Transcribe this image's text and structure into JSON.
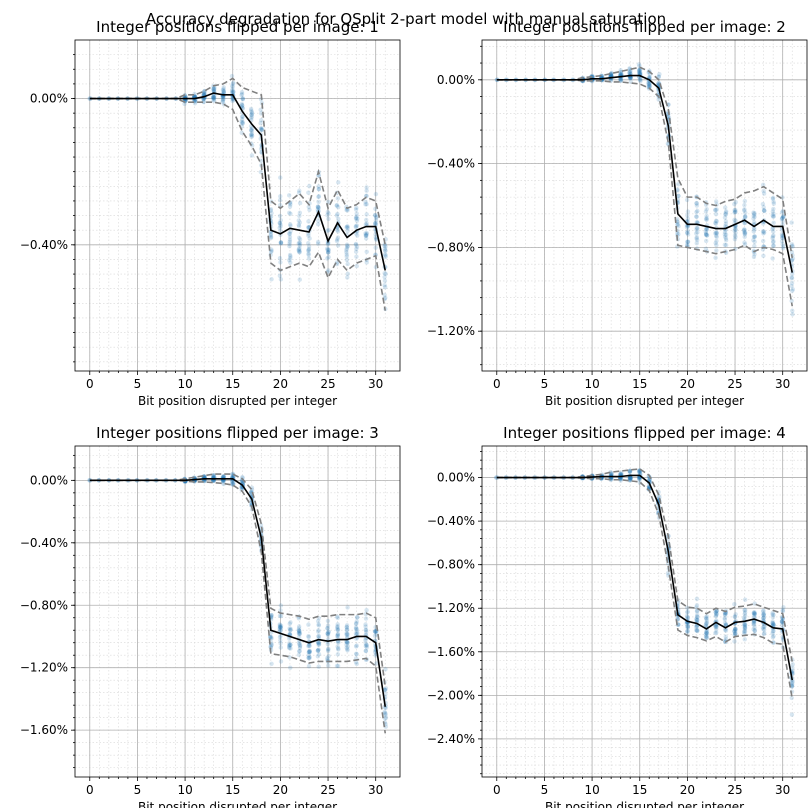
{
  "figure_title": "Accuracy degradation for QSplit 2-part model with manual saturation",
  "colors": {
    "points": "#1f77b4",
    "mean": "#000000",
    "band": "#808080",
    "grid": "#b0b0b0"
  },
  "chart_data": [
    {
      "type": "scatter",
      "title": "Integer positions flipped per image: 1",
      "xlabel": "Bit position disrupted per integer",
      "ylabel": "",
      "x": [
        0,
        1,
        2,
        3,
        4,
        5,
        6,
        7,
        8,
        9,
        10,
        11,
        12,
        13,
        14,
        15,
        16,
        17,
        18,
        19,
        20,
        21,
        22,
        23,
        24,
        25,
        26,
        27,
        28,
        29,
        30,
        31
      ],
      "series": [
        {
          "role": "mean",
          "values": [
            0,
            0,
            0,
            0,
            0,
            0,
            0,
            0,
            0,
            0,
            0,
            0,
            0.005,
            0.015,
            0.01,
            0.01,
            -0.035,
            -0.07,
            -0.1,
            -0.36,
            -0.37,
            -0.355,
            -0.36,
            -0.365,
            -0.31,
            -0.39,
            -0.34,
            -0.38,
            -0.36,
            -0.35,
            -0.35,
            -0.47
          ]
        },
        {
          "role": "upper",
          "values": [
            0,
            0,
            0,
            0,
            0,
            0,
            0,
            0,
            0,
            0,
            0.01,
            0.01,
            0.02,
            0.035,
            0.04,
            0.055,
            0.03,
            0.02,
            0.01,
            -0.28,
            -0.3,
            -0.28,
            -0.26,
            -0.29,
            -0.2,
            -0.3,
            -0.25,
            -0.3,
            -0.29,
            -0.27,
            -0.28,
            -0.4
          ]
        },
        {
          "role": "lower",
          "values": [
            0,
            0,
            0,
            0,
            0,
            0,
            0,
            0,
            0,
            0,
            -0.01,
            -0.01,
            -0.01,
            -0.01,
            -0.015,
            -0.03,
            -0.09,
            -0.13,
            -0.18,
            -0.45,
            -0.47,
            -0.46,
            -0.45,
            -0.46,
            -0.42,
            -0.49,
            -0.44,
            -0.47,
            -0.45,
            -0.44,
            -0.43,
            -0.58
          ]
        }
      ],
      "spread": [
        0,
        0,
        0,
        0,
        0,
        0,
        0,
        0,
        0,
        0,
        0.012,
        0.012,
        0.015,
        0.02,
        0.025,
        0.035,
        0.05,
        0.06,
        0.08,
        0.11,
        0.11,
        0.1,
        0.1,
        0.1,
        0.11,
        0.1,
        0.1,
        0.1,
        0.1,
        0.1,
        0.1,
        0.13
      ],
      "xlim": [
        -1.55,
        32.55
      ],
      "ylim": [
        -0.745,
        0.16
      ],
      "xticks": [
        0,
        5,
        10,
        15,
        20,
        25,
        30
      ],
      "yticks": [
        0,
        -0.4
      ],
      "ytick_labels": [
        "0.00%",
        "−0.40%"
      ],
      "minor_y_step": 0.04,
      "grid": true
    },
    {
      "type": "scatter",
      "title": "Integer positions flipped per image: 2",
      "xlabel": "Bit position disrupted per integer",
      "ylabel": "",
      "x": [
        0,
        1,
        2,
        3,
        4,
        5,
        6,
        7,
        8,
        9,
        10,
        11,
        12,
        13,
        14,
        15,
        16,
        17,
        18,
        19,
        20,
        21,
        22,
        23,
        24,
        25,
        26,
        27,
        28,
        29,
        30,
        31
      ],
      "series": [
        {
          "role": "mean",
          "values": [
            0,
            0,
            0,
            0,
            0,
            0,
            0,
            0,
            0,
            0,
            0.005,
            0.005,
            0.01,
            0.015,
            0.02,
            0.02,
            0.0,
            -0.04,
            -0.22,
            -0.64,
            -0.69,
            -0.69,
            -0.7,
            -0.71,
            -0.71,
            -0.69,
            -0.67,
            -0.7,
            -0.67,
            -0.7,
            -0.7,
            -0.92
          ]
        },
        {
          "role": "upper",
          "values": [
            0,
            0,
            0,
            0,
            0,
            0,
            0,
            0,
            0,
            0.01,
            0.015,
            0.02,
            0.03,
            0.04,
            0.05,
            0.06,
            0.04,
            0.0,
            -0.14,
            -0.47,
            -0.56,
            -0.56,
            -0.59,
            -0.6,
            -0.58,
            -0.57,
            -0.54,
            -0.53,
            -0.51,
            -0.54,
            -0.57,
            -0.85
          ]
        },
        {
          "role": "lower",
          "values": [
            0,
            0,
            0,
            0,
            0,
            0,
            0,
            0,
            0,
            -0.005,
            -0.005,
            -0.005,
            -0.01,
            -0.01,
            -0.015,
            -0.02,
            -0.04,
            -0.08,
            -0.3,
            -0.79,
            -0.8,
            -0.81,
            -0.82,
            -0.83,
            -0.82,
            -0.81,
            -0.79,
            -0.82,
            -0.8,
            -0.81,
            -0.83,
            -1.08
          ]
        }
      ],
      "spread": [
        0,
        0,
        0,
        0,
        0,
        0,
        0,
        0,
        0,
        0.01,
        0.012,
        0.015,
        0.02,
        0.025,
        0.03,
        0.04,
        0.05,
        0.06,
        0.1,
        0.15,
        0.12,
        0.12,
        0.12,
        0.12,
        0.12,
        0.12,
        0.12,
        0.13,
        0.13,
        0.13,
        0.13,
        0.18
      ],
      "xlim": [
        -1.55,
        32.55
      ],
      "ylim": [
        -1.39,
        0.19
      ],
      "xticks": [
        0,
        5,
        10,
        15,
        20,
        25,
        30
      ],
      "yticks": [
        0,
        -0.4,
        -0.8,
        -1.2
      ],
      "ytick_labels": [
        "0.00%",
        "−0.40%",
        "−0.80%",
        "−1.20%"
      ],
      "minor_y_step": 0.08,
      "grid": true
    },
    {
      "type": "scatter",
      "title": "Integer positions flipped per image: 3",
      "xlabel": "Bit position disrupted per integer",
      "ylabel": "",
      "x": [
        0,
        1,
        2,
        3,
        4,
        5,
        6,
        7,
        8,
        9,
        10,
        11,
        12,
        13,
        14,
        15,
        16,
        17,
        18,
        19,
        20,
        21,
        22,
        23,
        24,
        25,
        26,
        27,
        28,
        29,
        30,
        31
      ],
      "series": [
        {
          "role": "mean",
          "values": [
            0,
            0,
            0,
            0,
            0,
            0,
            0,
            0,
            0,
            0,
            0,
            0.005,
            0.01,
            0.01,
            0.01,
            0.01,
            -0.03,
            -0.12,
            -0.37,
            -0.96,
            -0.98,
            -1.0,
            -1.02,
            -1.04,
            -1.02,
            -1.03,
            -1.02,
            -1.02,
            -1.0,
            -1.0,
            -1.04,
            -1.45
          ]
        },
        {
          "role": "upper",
          "values": [
            0,
            0,
            0,
            0,
            0,
            0,
            0,
            0,
            0,
            0,
            0.01,
            0.02,
            0.03,
            0.04,
            0.04,
            0.04,
            0.01,
            -0.06,
            -0.28,
            -0.82,
            -0.85,
            -0.86,
            -0.87,
            -0.89,
            -0.87,
            -0.87,
            -0.86,
            -0.86,
            -0.86,
            -0.85,
            -0.88,
            -1.32
          ]
        },
        {
          "role": "lower",
          "values": [
            0,
            0,
            0,
            0,
            0,
            0,
            0,
            0,
            0,
            0,
            -0.005,
            -0.01,
            -0.01,
            -0.015,
            -0.02,
            -0.03,
            -0.07,
            -0.17,
            -0.46,
            -1.11,
            -1.12,
            -1.13,
            -1.15,
            -1.17,
            -1.16,
            -1.16,
            -1.16,
            -1.16,
            -1.15,
            -1.14,
            -1.19,
            -1.62
          ]
        }
      ],
      "spread": [
        0,
        0,
        0,
        0,
        0,
        0,
        0,
        0,
        0,
        0,
        0.01,
        0.015,
        0.02,
        0.025,
        0.03,
        0.04,
        0.05,
        0.07,
        0.1,
        0.16,
        0.14,
        0.14,
        0.14,
        0.14,
        0.14,
        0.14,
        0.14,
        0.14,
        0.14,
        0.14,
        0.15,
        0.22
      ],
      "xlim": [
        -1.55,
        32.55
      ],
      "ylim": [
        -1.9,
        0.22
      ],
      "xticks": [
        0,
        5,
        10,
        15,
        20,
        25,
        30
      ],
      "yticks": [
        0,
        -0.4,
        -0.8,
        -1.2,
        -1.6
      ],
      "ytick_labels": [
        "0.00%",
        "−0.40%",
        "−0.80%",
        "−1.20%",
        "−1.60%"
      ],
      "minor_y_step": 0.08,
      "grid": true
    },
    {
      "type": "scatter",
      "title": "Integer positions flipped per image: 4",
      "xlabel": "Bit position disrupted per integer",
      "ylabel": "",
      "x": [
        0,
        1,
        2,
        3,
        4,
        5,
        6,
        7,
        8,
        9,
        10,
        11,
        12,
        13,
        14,
        15,
        16,
        17,
        18,
        19,
        20,
        21,
        22,
        23,
        24,
        25,
        26,
        27,
        28,
        29,
        30,
        31
      ],
      "series": [
        {
          "role": "mean",
          "values": [
            0,
            0,
            0,
            0,
            0,
            0,
            0,
            0,
            0,
            0,
            0.005,
            0.01,
            0.01,
            0.01,
            0.02,
            0.02,
            -0.05,
            -0.25,
            -0.68,
            -1.26,
            -1.32,
            -1.34,
            -1.39,
            -1.33,
            -1.38,
            -1.33,
            -1.32,
            -1.3,
            -1.33,
            -1.38,
            -1.39,
            -1.86
          ]
        },
        {
          "role": "upper",
          "values": [
            0,
            0,
            0,
            0,
            0,
            0,
            0,
            0,
            0,
            0.01,
            0.02,
            0.03,
            0.05,
            0.06,
            0.07,
            0.08,
            0.02,
            -0.16,
            -0.54,
            -1.13,
            -1.19,
            -1.2,
            -1.25,
            -1.2,
            -1.23,
            -1.19,
            -1.18,
            -1.16,
            -1.19,
            -1.22,
            -1.25,
            -1.69
          ]
        },
        {
          "role": "lower",
          "values": [
            0,
            0,
            0,
            0,
            0,
            0,
            0,
            0,
            0,
            -0.005,
            -0.01,
            -0.01,
            -0.02,
            -0.02,
            -0.03,
            -0.04,
            -0.12,
            -0.34,
            -0.82,
            -1.4,
            -1.45,
            -1.47,
            -1.5,
            -1.46,
            -1.51,
            -1.46,
            -1.45,
            -1.44,
            -1.47,
            -1.52,
            -1.53,
            -2.03
          ]
        }
      ],
      "spread": [
        0,
        0,
        0,
        0,
        0,
        0,
        0,
        0,
        0,
        0.01,
        0.015,
        0.02,
        0.03,
        0.04,
        0.05,
        0.06,
        0.08,
        0.1,
        0.15,
        0.15,
        0.15,
        0.15,
        0.15,
        0.15,
        0.15,
        0.15,
        0.15,
        0.15,
        0.15,
        0.16,
        0.16,
        0.22
      ],
      "xlim": [
        -1.55,
        32.55
      ],
      "ylim": [
        -2.75,
        0.29
      ],
      "xticks": [
        0,
        5,
        10,
        15,
        20,
        25,
        30
      ],
      "yticks": [
        0,
        -0.4,
        -0.8,
        -1.2,
        -1.6,
        -2.0,
        -2.4
      ],
      "ytick_labels": [
        "0.00%",
        "−0.40%",
        "−0.80%",
        "−1.20%",
        "−1.60%",
        "−2.00%",
        "−2.40%"
      ],
      "minor_y_step": 0.08,
      "grid": true
    }
  ]
}
